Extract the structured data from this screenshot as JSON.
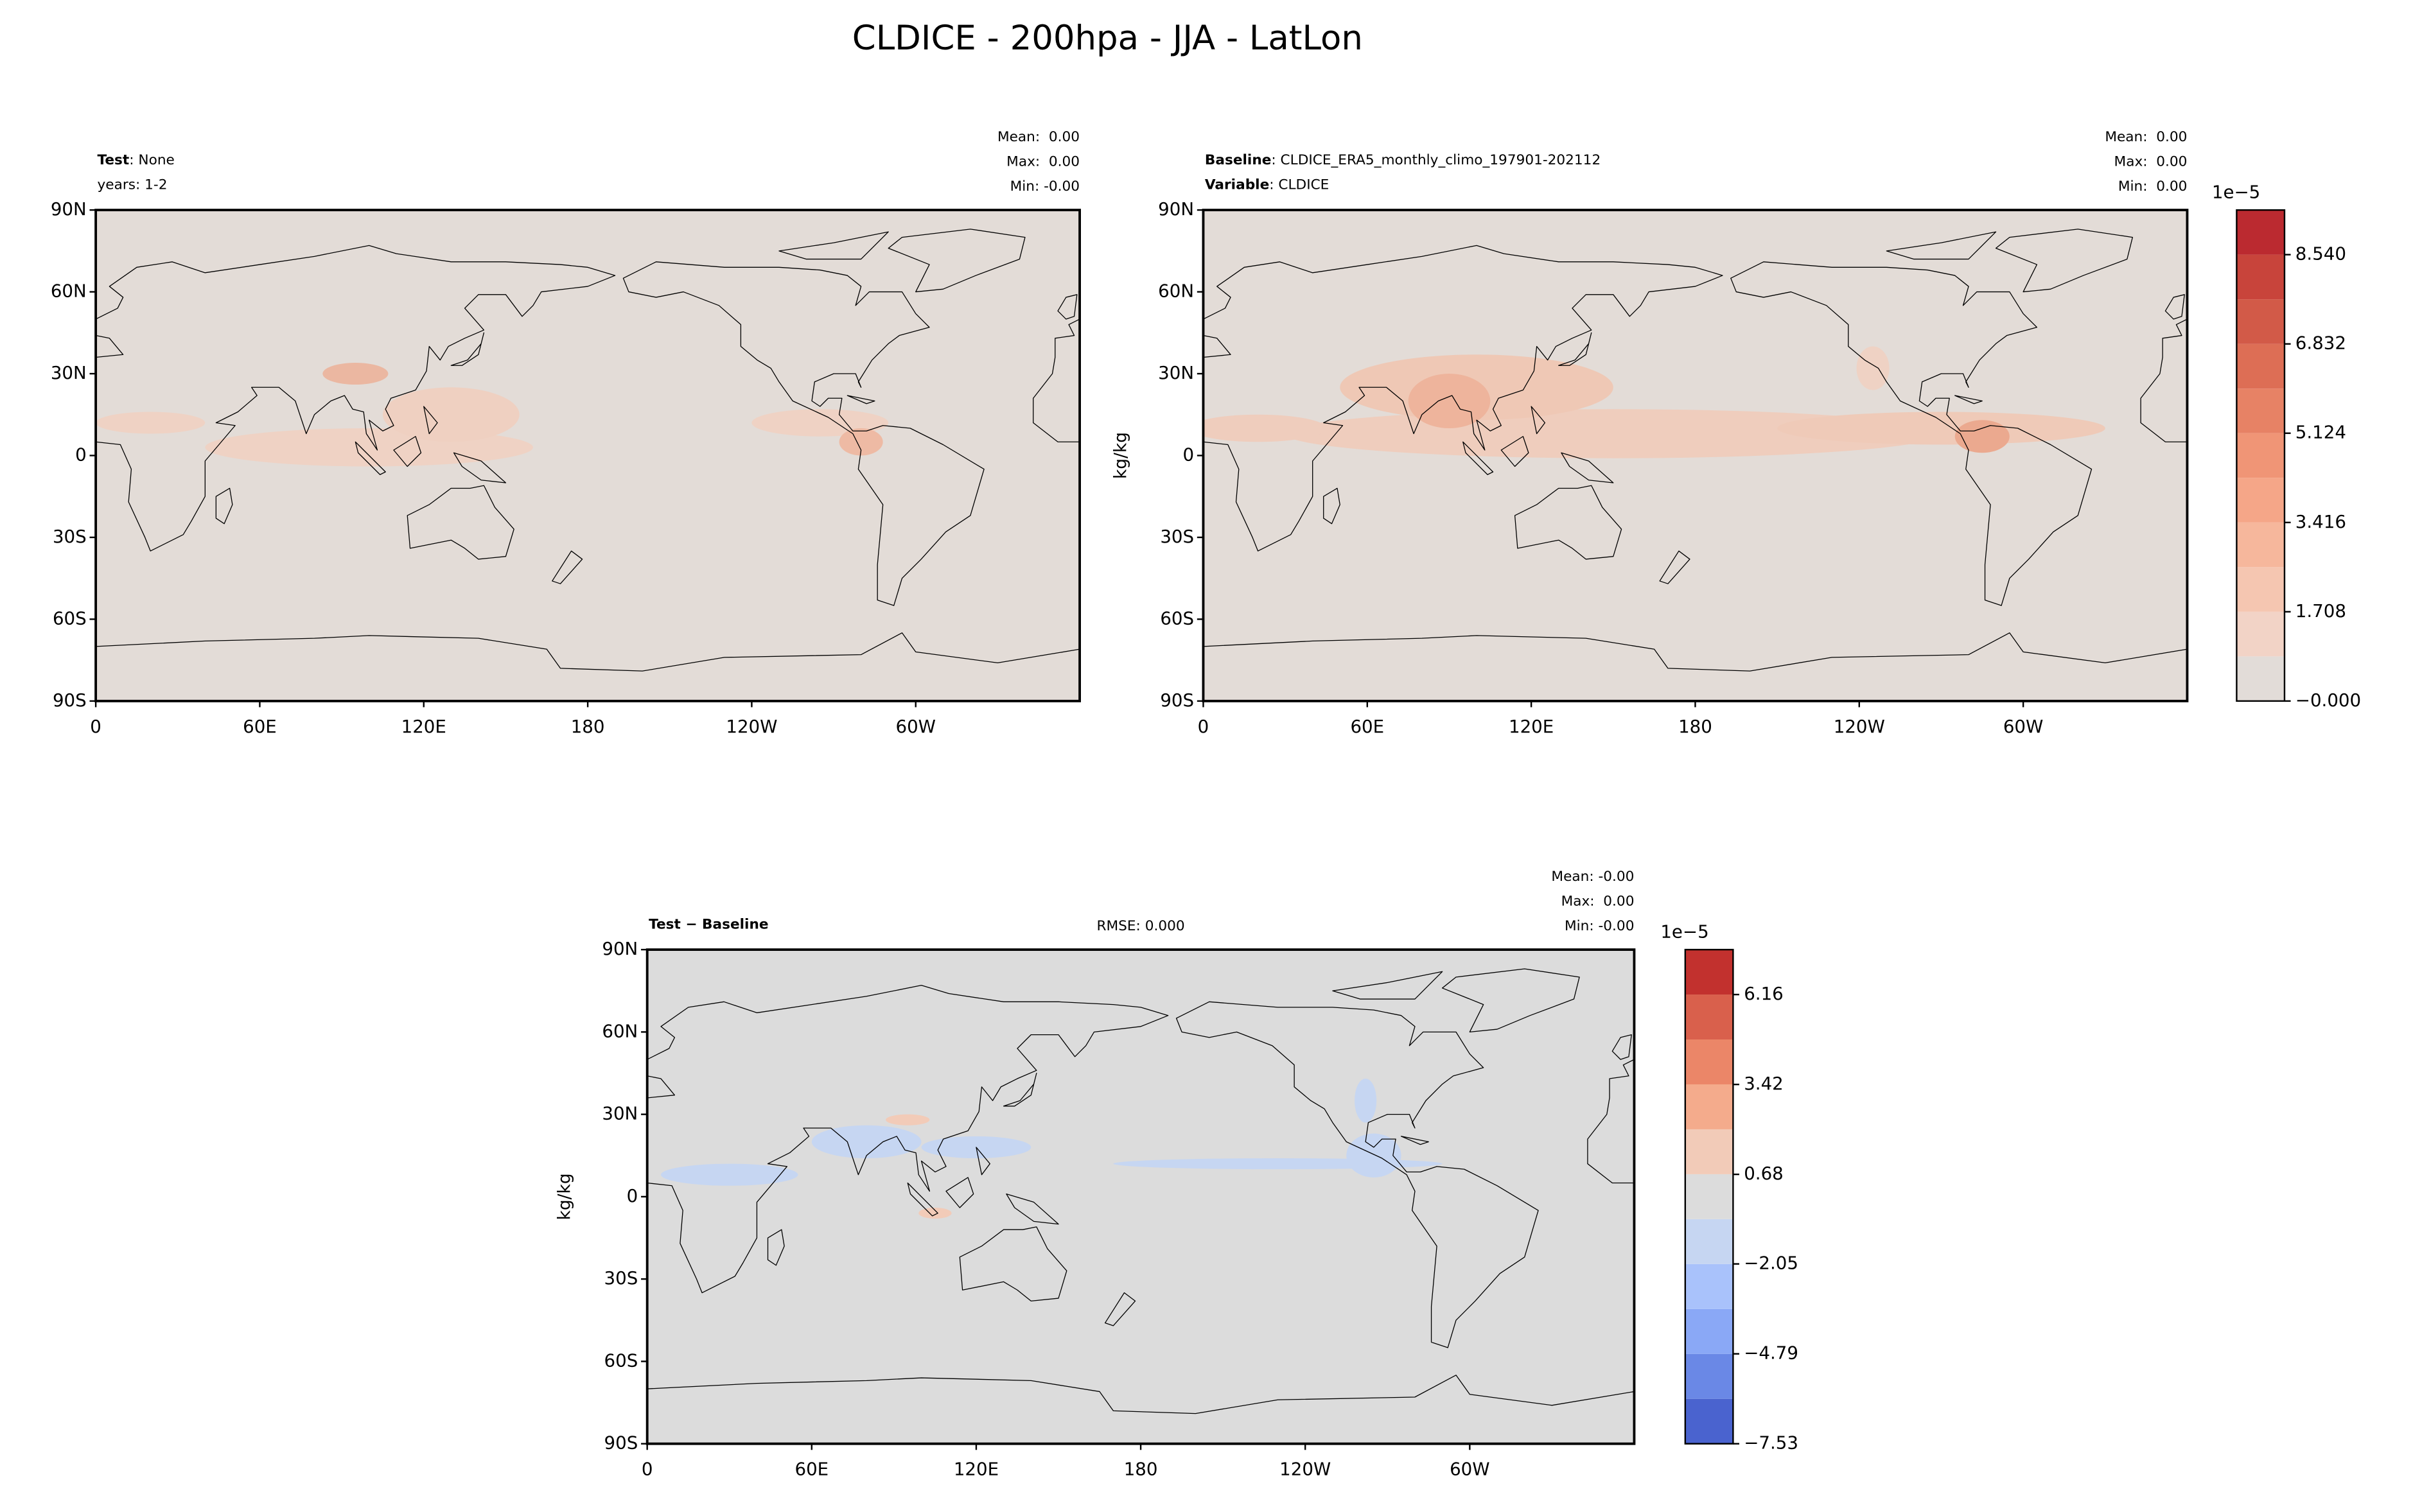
{
  "title": "CLDICE - 200hpa - JJA - LatLon",
  "chart_data": [
    {
      "type": "map",
      "info": [
        {
          "bold": "Test",
          "text": ": None"
        },
        {
          "text": "years: 1-2"
        }
      ],
      "stats": [
        "Mean:  0.00",
        "Max:  0.00",
        "Min: -0.00"
      ],
      "xlim": [
        0,
        360
      ],
      "ylim": [
        -90,
        90
      ],
      "xticks": [
        0,
        {
          "value": 60,
          "label": "60E"
        },
        {
          "value": 120,
          "label": "120E"
        },
        180,
        {
          "value": 240,
          "label": "120W"
        },
        {
          "value": 300,
          "label": "60W"
        }
      ],
      "yticks": [
        {
          "value": 90,
          "label": "90N"
        },
        {
          "value": 60,
          "label": "60N"
        },
        {
          "value": 30,
          "label": "30N"
        },
        0,
        {
          "value": -30,
          "label": "30S"
        },
        {
          "value": -60,
          "label": "60S"
        },
        {
          "value": -90,
          "label": "90S"
        }
      ]
    },
    {
      "type": "map",
      "info": [
        {
          "bold": "Baseline",
          "text": ": CLDICE_ERA5_monthly_climo_197901-202112"
        },
        {
          "bold": "Variable",
          "text": ": CLDICE"
        }
      ],
      "stats": [
        "Mean:  0.00",
        "Max:  0.00",
        "Min:  0.00"
      ],
      "ylabel": "kg/kg",
      "xlim": [
        0,
        360
      ],
      "ylim": [
        -90,
        90
      ],
      "xticks": [
        0,
        {
          "value": 60,
          "label": "60E"
        },
        {
          "value": 120,
          "label": "120E"
        },
        180,
        {
          "value": 240,
          "label": "120W"
        },
        {
          "value": 300,
          "label": "60W"
        }
      ],
      "yticks": [
        {
          "value": 90,
          "label": "90N"
        },
        {
          "value": 60,
          "label": "60N"
        },
        {
          "value": 30,
          "label": "30N"
        },
        0,
        {
          "value": -30,
          "label": "30S"
        },
        {
          "value": -60,
          "label": "60S"
        },
        {
          "value": -90,
          "label": "90S"
        }
      ],
      "colorbar": {
        "offset_label": "1e−5",
        "bounds": [
          0,
          0.854,
          1.708,
          2.562,
          3.416,
          4.27,
          5.124,
          5.978,
          6.832,
          7.686,
          8.54,
          9.394
        ],
        "colors": [
          "#e2dcd8",
          "#f2d3c6",
          "#f5c6b1",
          "#f6b79c",
          "#f5a688",
          "#f09576",
          "#e78265",
          "#dd6e55",
          "#d25a48",
          "#c8443b",
          "#bb2a30"
        ],
        "ticks": [
          {
            "value": 0,
            "label": "−0.000"
          },
          1.708,
          3.416,
          5.124,
          6.832,
          {
            "value": 8.54,
            "label": "8.540"
          }
        ]
      }
    },
    {
      "type": "map",
      "info": [
        {
          "bold": "Test − Baseline"
        }
      ],
      "center_text": "RMSE: 0.000",
      "stats": [
        "Mean: -0.00",
        "Max:  0.00",
        "Min: -0.00"
      ],
      "ylabel": "kg/kg",
      "xlim": [
        0,
        360
      ],
      "ylim": [
        -90,
        90
      ],
      "xticks": [
        0,
        {
          "value": 60,
          "label": "60E"
        },
        {
          "value": 120,
          "label": "120E"
        },
        180,
        {
          "value": 240,
          "label": "120W"
        },
        {
          "value": 300,
          "label": "60W"
        }
      ],
      "yticks": [
        {
          "value": 90,
          "label": "90N"
        },
        {
          "value": 60,
          "label": "60N"
        },
        {
          "value": 30,
          "label": "30N"
        },
        0,
        {
          "value": -30,
          "label": "30S"
        },
        {
          "value": -60,
          "label": "60S"
        },
        {
          "value": -90,
          "label": "90S"
        }
      ],
      "colorbar": {
        "offset_label": "1e−5",
        "bounds": [
          -7.53,
          -6.161,
          -4.792,
          -3.423,
          -2.054,
          -0.685,
          0.684,
          2.053,
          3.422,
          4.791,
          6.16,
          7.529
        ],
        "colors": [
          "#4a63cf",
          "#6a88e6",
          "#8aa8f6",
          "#a9c2fb",
          "#c6d6f2",
          "#dcdcdc",
          "#f2cbb8",
          "#f4ab8c",
          "#eb8668",
          "#d9604c",
          "#c2312e"
        ],
        "ticks": [
          {
            "value": -7.53,
            "label": "−7.53"
          },
          {
            "value": -4.79,
            "label": "−4.79"
          },
          {
            "value": -2.05,
            "label": "−2.05"
          },
          0.68,
          3.42,
          6.16
        ]
      }
    }
  ]
}
